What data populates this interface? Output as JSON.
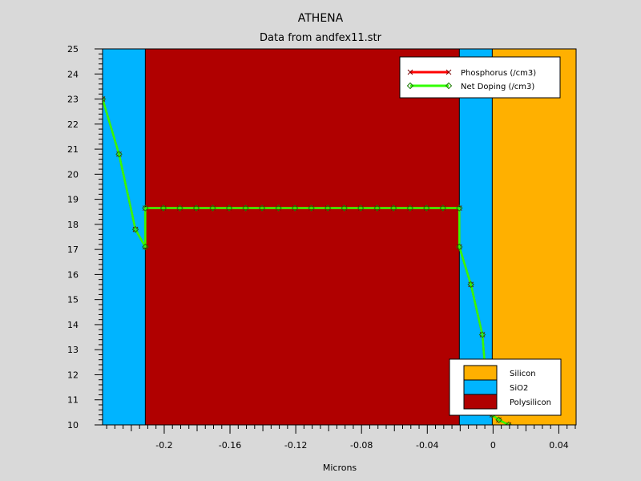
{
  "chart_data": {
    "type": "line",
    "title": "ATHENA",
    "subtitle": "Data from andfex11.str",
    "xlabel": "Microns",
    "ylabel": "",
    "xlim": [
      -0.2375,
      0.0505
    ],
    "ylim": [
      10,
      25
    ],
    "x_ticks": [
      -0.2,
      -0.16,
      -0.12,
      -0.08,
      -0.04,
      0,
      0.04
    ],
    "x_tick_labels": [
      "-0.2",
      "-0.16",
      "-0.12",
      "-0.08",
      "-0.04",
      "0",
      "0.04"
    ],
    "y_ticks": [
      10,
      11,
      12,
      13,
      14,
      15,
      16,
      17,
      18,
      19,
      20,
      21,
      22,
      23,
      24,
      25
    ],
    "y_tick_labels": [
      "10",
      "11",
      "12",
      "13",
      "14",
      "15",
      "16",
      "17",
      "18",
      "19",
      "20",
      "21",
      "22",
      "23",
      "24",
      "25"
    ],
    "regions": [
      {
        "material": "SiO2",
        "x0": -0.2375,
        "x1": -0.2115,
        "color": "#00b4ff"
      },
      {
        "material": "Polysilicon",
        "x0": -0.2115,
        "x1": -0.0205,
        "color": "#b00000"
      },
      {
        "material": "SiO2",
        "x0": -0.0205,
        "x1": -0.0005,
        "color": "#00b4ff"
      },
      {
        "material": "Silicon",
        "x0": -0.0005,
        "x1": 0.0505,
        "color": "#ffb000"
      }
    ],
    "series": [
      {
        "name": "Phosphorus (/cm3)",
        "color": "#ff0000",
        "x": [
          -0.2375,
          -0.2275,
          -0.2175,
          -0.2115,
          -0.2115,
          -0.2005,
          -0.1905,
          -0.1805,
          -0.1705,
          -0.1605,
          -0.1505,
          -0.1405,
          -0.1305,
          -0.1205,
          -0.1105,
          -0.1005,
          -0.0905,
          -0.0805,
          -0.0705,
          -0.0605,
          -0.0505,
          -0.0405,
          -0.0305,
          -0.0205,
          -0.0205,
          -0.0135,
          -0.0065,
          -0.0045,
          -0.0005,
          0.0035,
          0.0095
        ],
        "y": [
          23.0,
          20.8,
          17.8,
          17.1,
          18.65,
          18.65,
          18.65,
          18.65,
          18.65,
          18.65,
          18.65,
          18.65,
          18.65,
          18.65,
          18.65,
          18.65,
          18.65,
          18.65,
          18.65,
          18.65,
          18.65,
          18.65,
          18.65,
          18.65,
          17.1,
          15.6,
          13.6,
          12.0,
          10.4,
          10.2,
          10.0
        ]
      },
      {
        "name": "Net Doping (/cm3)",
        "color": "#33ff00",
        "x": [
          -0.2375,
          -0.2275,
          -0.2175,
          -0.2115,
          -0.2115,
          -0.2005,
          -0.1905,
          -0.1805,
          -0.1705,
          -0.1605,
          -0.1505,
          -0.1405,
          -0.1305,
          -0.1205,
          -0.1105,
          -0.1005,
          -0.0905,
          -0.0805,
          -0.0705,
          -0.0605,
          -0.0505,
          -0.0405,
          -0.0305,
          -0.0205,
          -0.0205,
          -0.0135,
          -0.0065,
          -0.0045,
          -0.0005,
          0.0035,
          0.0095
        ],
        "y": [
          23.0,
          20.8,
          17.8,
          17.1,
          18.65,
          18.65,
          18.65,
          18.65,
          18.65,
          18.65,
          18.65,
          18.65,
          18.65,
          18.65,
          18.65,
          18.65,
          18.65,
          18.65,
          18.65,
          18.65,
          18.65,
          18.65,
          18.65,
          18.65,
          17.1,
          15.6,
          13.6,
          12.0,
          10.4,
          10.2,
          10.0
        ]
      }
    ],
    "series_legend_placement": "top-right",
    "material_legend": [
      {
        "label": "Silicon",
        "color": "#ffb000"
      },
      {
        "label": "SiO2",
        "color": "#00b4ff"
      },
      {
        "label": "Polysilicon",
        "color": "#b00000"
      }
    ],
    "material_legend_placement": "bottom-right",
    "grid": false
  }
}
